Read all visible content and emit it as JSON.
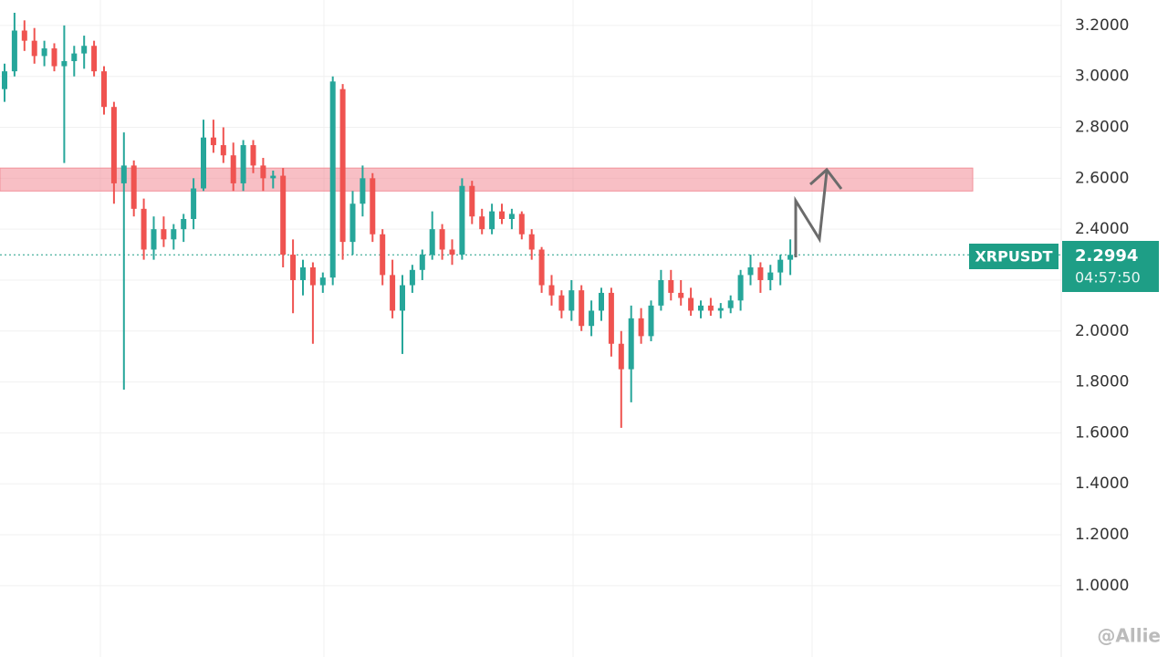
{
  "chart_data": {
    "type": "candlestick",
    "symbol": "XRPUSDT",
    "last_price": 2.2994,
    "countdown": "04:57:50",
    "up_color": "#26a69a",
    "down_color": "#ef5350",
    "ylim": [
      0.72,
      3.3
    ],
    "yticks": [
      {
        "value": 1.0,
        "label": "1.0000"
      },
      {
        "value": 1.2,
        "label": "1.2000"
      },
      {
        "value": 1.4,
        "label": "1.4000"
      },
      {
        "value": 1.6,
        "label": "1.6000"
      },
      {
        "value": 1.8,
        "label": "1.8000"
      },
      {
        "value": 2.0,
        "label": "2.0000"
      },
      {
        "value": 2.2,
        "label": "2.2000"
      },
      {
        "value": 2.4,
        "label": "2.4000"
      },
      {
        "value": 2.6,
        "label": "2.6000"
      },
      {
        "value": 2.8,
        "label": "2.8000"
      },
      {
        "value": 3.0,
        "label": "3.0000"
      },
      {
        "value": 3.2,
        "label": "3.2000"
      }
    ],
    "grid": true,
    "resistance_zone": [
      2.55,
      2.64
    ],
    "ohlc": [
      [
        2.95,
        3.05,
        2.9,
        3.02
      ],
      [
        3.02,
        3.25,
        3.0,
        3.18
      ],
      [
        3.18,
        3.22,
        3.1,
        3.14
      ],
      [
        3.14,
        3.19,
        3.05,
        3.08
      ],
      [
        3.08,
        3.14,
        3.04,
        3.11
      ],
      [
        3.11,
        3.13,
        3.02,
        3.04
      ],
      [
        3.04,
        3.2,
        2.66,
        3.06
      ],
      [
        3.06,
        3.12,
        3.0,
        3.09
      ],
      [
        3.09,
        3.16,
        3.03,
        3.12
      ],
      [
        3.12,
        3.14,
        3.0,
        3.02
      ],
      [
        3.02,
        3.04,
        2.85,
        2.88
      ],
      [
        2.88,
        2.9,
        2.5,
        2.58
      ],
      [
        2.58,
        2.78,
        1.77,
        2.65
      ],
      [
        2.65,
        2.67,
        2.45,
        2.48
      ],
      [
        2.48,
        2.52,
        2.28,
        2.32
      ],
      [
        2.32,
        2.45,
        2.28,
        2.4
      ],
      [
        2.4,
        2.45,
        2.33,
        2.36
      ],
      [
        2.36,
        2.42,
        2.32,
        2.4
      ],
      [
        2.4,
        2.46,
        2.35,
        2.44
      ],
      [
        2.44,
        2.6,
        2.4,
        2.56
      ],
      [
        2.56,
        2.83,
        2.55,
        2.76
      ],
      [
        2.76,
        2.83,
        2.7,
        2.73
      ],
      [
        2.73,
        2.8,
        2.66,
        2.69
      ],
      [
        2.69,
        2.74,
        2.55,
        2.58
      ],
      [
        2.58,
        2.75,
        2.55,
        2.73
      ],
      [
        2.73,
        2.75,
        2.62,
        2.65
      ],
      [
        2.65,
        2.68,
        2.55,
        2.6
      ],
      [
        2.6,
        2.63,
        2.56,
        2.61
      ],
      [
        2.61,
        2.64,
        2.25,
        2.3
      ],
      [
        2.3,
        2.36,
        2.07,
        2.2
      ],
      [
        2.2,
        2.28,
        2.14,
        2.25
      ],
      [
        2.25,
        2.27,
        1.95,
        2.18
      ],
      [
        2.18,
        2.23,
        2.15,
        2.21
      ],
      [
        2.21,
        3.0,
        2.18,
        2.98
      ],
      [
        2.95,
        2.97,
        2.28,
        2.35
      ],
      [
        2.35,
        2.55,
        2.3,
        2.5
      ],
      [
        2.5,
        2.65,
        2.45,
        2.6
      ],
      [
        2.6,
        2.62,
        2.35,
        2.38
      ],
      [
        2.38,
        2.4,
        2.18,
        2.22
      ],
      [
        2.22,
        2.28,
        2.05,
        2.08
      ],
      [
        2.08,
        2.22,
        1.91,
        2.18
      ],
      [
        2.18,
        2.26,
        2.15,
        2.24
      ],
      [
        2.24,
        2.32,
        2.2,
        2.3
      ],
      [
        2.3,
        2.47,
        2.28,
        2.4
      ],
      [
        2.4,
        2.42,
        2.28,
        2.32
      ],
      [
        2.32,
        2.36,
        2.26,
        2.3
      ],
      [
        2.3,
        2.6,
        2.28,
        2.57
      ],
      [
        2.57,
        2.59,
        2.42,
        2.45
      ],
      [
        2.45,
        2.48,
        2.38,
        2.4
      ],
      [
        2.4,
        2.5,
        2.38,
        2.47
      ],
      [
        2.47,
        2.5,
        2.42,
        2.44
      ],
      [
        2.44,
        2.48,
        2.4,
        2.46
      ],
      [
        2.46,
        2.47,
        2.36,
        2.38
      ],
      [
        2.38,
        2.4,
        2.28,
        2.32
      ],
      [
        2.32,
        2.33,
        2.15,
        2.18
      ],
      [
        2.18,
        2.22,
        2.1,
        2.14
      ],
      [
        2.14,
        2.16,
        2.05,
        2.08
      ],
      [
        2.08,
        2.2,
        2.04,
        2.16
      ],
      [
        2.16,
        2.18,
        2.0,
        2.02
      ],
      [
        2.02,
        2.12,
        1.98,
        2.08
      ],
      [
        2.08,
        2.17,
        2.04,
        2.15
      ],
      [
        2.15,
        2.17,
        1.9,
        1.95
      ],
      [
        1.95,
        2.0,
        1.62,
        1.85
      ],
      [
        1.85,
        2.1,
        1.72,
        2.05
      ],
      [
        2.05,
        2.09,
        1.95,
        1.98
      ],
      [
        1.98,
        2.12,
        1.96,
        2.1
      ],
      [
        2.1,
        2.24,
        2.08,
        2.2
      ],
      [
        2.2,
        2.24,
        2.12,
        2.15
      ],
      [
        2.15,
        2.2,
        2.1,
        2.13
      ],
      [
        2.13,
        2.17,
        2.06,
        2.08
      ],
      [
        2.08,
        2.12,
        2.05,
        2.1
      ],
      [
        2.1,
        2.13,
        2.06,
        2.08
      ],
      [
        2.08,
        2.11,
        2.05,
        2.09
      ],
      [
        2.09,
        2.14,
        2.07,
        2.12
      ],
      [
        2.12,
        2.24,
        2.08,
        2.22
      ],
      [
        2.22,
        2.3,
        2.18,
        2.25
      ],
      [
        2.25,
        2.27,
        2.15,
        2.2
      ],
      [
        2.2,
        2.26,
        2.16,
        2.23
      ],
      [
        2.23,
        2.3,
        2.18,
        2.28
      ],
      [
        2.28,
        2.36,
        2.22,
        2.2994
      ]
    ],
    "watermark": "@Allie"
  }
}
